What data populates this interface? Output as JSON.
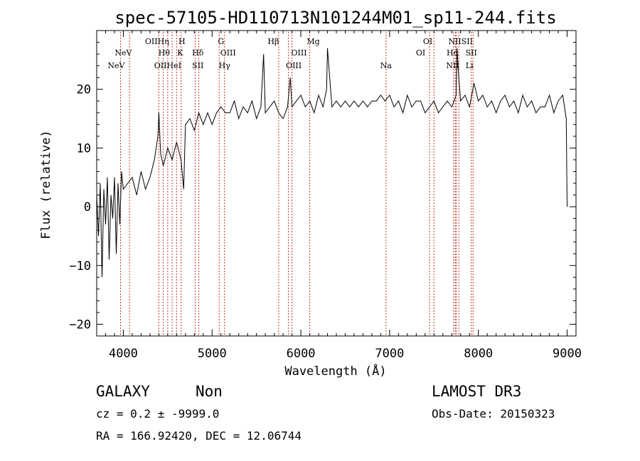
{
  "chart_data": {
    "type": "line",
    "title": "spec-57105-HD110713N101244M01_sp11-244.fits",
    "xlabel": "Wavelength (Å)",
    "ylabel": "Flux (relative)",
    "xlim": [
      3700,
      9100
    ],
    "ylim": [
      -22,
      30
    ],
    "xticks": [
      4000,
      5000,
      6000,
      7000,
      8000,
      9000
    ],
    "yticks": [
      -20,
      -10,
      0,
      10,
      20
    ],
    "series": [
      {
        "name": "flux",
        "x": [
          3700,
          3720,
          3740,
          3760,
          3780,
          3800,
          3820,
          3840,
          3860,
          3880,
          3900,
          3920,
          3940,
          3960,
          3980,
          4000,
          4050,
          4100,
          4150,
          4200,
          4250,
          4300,
          4350,
          4390,
          4400,
          4420,
          4450,
          4500,
          4550,
          4600,
          4650,
          4680,
          4700,
          4750,
          4800,
          4850,
          4900,
          4950,
          5000,
          5050,
          5100,
          5150,
          5200,
          5250,
          5300,
          5350,
          5400,
          5450,
          5500,
          5550,
          5580,
          5600,
          5650,
          5700,
          5750,
          5800,
          5850,
          5880,
          5900,
          5950,
          6000,
          6050,
          6100,
          6150,
          6200,
          6250,
          6290,
          6300,
          6350,
          6400,
          6450,
          6500,
          6550,
          6600,
          6650,
          6700,
          6750,
          6800,
          6850,
          6900,
          6950,
          7000,
          7050,
          7100,
          7150,
          7200,
          7250,
          7300,
          7350,
          7400,
          7450,
          7500,
          7550,
          7600,
          7650,
          7700,
          7750,
          7760,
          7780,
          7800,
          7850,
          7900,
          7950,
          8000,
          8050,
          8100,
          8150,
          8200,
          8250,
          8300,
          8350,
          8400,
          8450,
          8500,
          8550,
          8600,
          8650,
          8700,
          8750,
          8800,
          8850,
          8900,
          8950,
          8990,
          9000
        ],
        "y": [
          2,
          -5,
          4,
          -12,
          3,
          -3,
          5,
          -9,
          2,
          -2,
          5,
          -8,
          4,
          -3,
          6,
          3,
          4,
          5,
          2,
          6,
          3,
          5,
          8,
          12,
          16,
          9,
          7,
          10,
          8,
          11,
          8,
          3,
          14,
          15,
          13,
          16,
          14,
          16,
          14,
          16,
          17,
          16,
          16,
          18,
          15,
          17,
          16,
          18,
          15,
          17,
          26,
          16,
          17,
          18,
          16,
          15,
          17,
          22,
          17,
          18,
          19,
          17,
          18,
          16,
          19,
          17,
          20,
          27,
          17,
          18,
          17,
          18,
          17,
          18,
          17,
          18,
          17,
          18,
          18,
          19,
          18,
          19,
          17,
          18,
          16,
          19,
          17,
          18,
          18,
          16,
          17,
          18,
          16,
          17,
          18,
          17,
          19,
          27,
          22,
          18,
          19,
          17,
          21,
          18,
          19,
          17,
          18,
          16,
          18,
          19,
          17,
          18,
          16,
          19,
          17,
          18,
          16,
          17,
          17,
          19,
          16,
          18,
          19,
          15,
          0
        ]
      }
    ],
    "line_markers": {
      "positions": [
        3968,
        4070,
        4400,
        4450,
        4500,
        4550,
        4600,
        4650,
        4810,
        4850,
        5080,
        5140,
        5750,
        5860,
        5900,
        6100,
        6960,
        7450,
        7500,
        7720,
        7740,
        7750,
        7780,
        7920,
        7940
      ],
      "labels": [
        {
          "text": "OIIHη",
          "x": 4380,
          "row": 1
        },
        {
          "text": "H",
          "x": 4660,
          "row": 1
        },
        {
          "text": "G",
          "x": 5100,
          "row": 1
        },
        {
          "text": "Hβ",
          "x": 5690,
          "row": 1
        },
        {
          "text": "Mg",
          "x": 6140,
          "row": 1
        },
        {
          "text": "OI",
          "x": 7430,
          "row": 1
        },
        {
          "text": "NIISII",
          "x": 7800,
          "row": 1
        },
        {
          "text": "NeV",
          "x": 4000,
          "row": 2
        },
        {
          "text": "Hθ",
          "x": 4460,
          "row": 2
        },
        {
          "text": "K",
          "x": 4640,
          "row": 2
        },
        {
          "text": "Hδ",
          "x": 4840,
          "row": 2
        },
        {
          "text": "OIII",
          "x": 5180,
          "row": 2
        },
        {
          "text": "OIII",
          "x": 5980,
          "row": 2
        },
        {
          "text": "OI",
          "x": 7350,
          "row": 2
        },
        {
          "text": "Hα",
          "x": 7710,
          "row": 2
        },
        {
          "text": "SII",
          "x": 7920,
          "row": 2
        },
        {
          "text": "NeV",
          "x": 3920,
          "row": 3
        },
        {
          "text": "OIIHeI",
          "x": 4500,
          "row": 3
        },
        {
          "text": "SII",
          "x": 4840,
          "row": 3
        },
        {
          "text": "Hγ",
          "x": 5140,
          "row": 3
        },
        {
          "text": "OIII",
          "x": 5920,
          "row": 3
        },
        {
          "text": "Na",
          "x": 6960,
          "row": 3
        },
        {
          "text": "NII",
          "x": 7710,
          "row": 3
        },
        {
          "text": "Li",
          "x": 7900,
          "row": 3
        }
      ]
    }
  },
  "info": {
    "object_class": "GALAXY",
    "subclass": "Non",
    "survey": "LAMOST DR3",
    "cz": "cz = 0.2 ± -9999.0",
    "obs_date": "Obs-Date: 20150323",
    "coords": "RA = 166.92420, DEC =  12.06744"
  }
}
